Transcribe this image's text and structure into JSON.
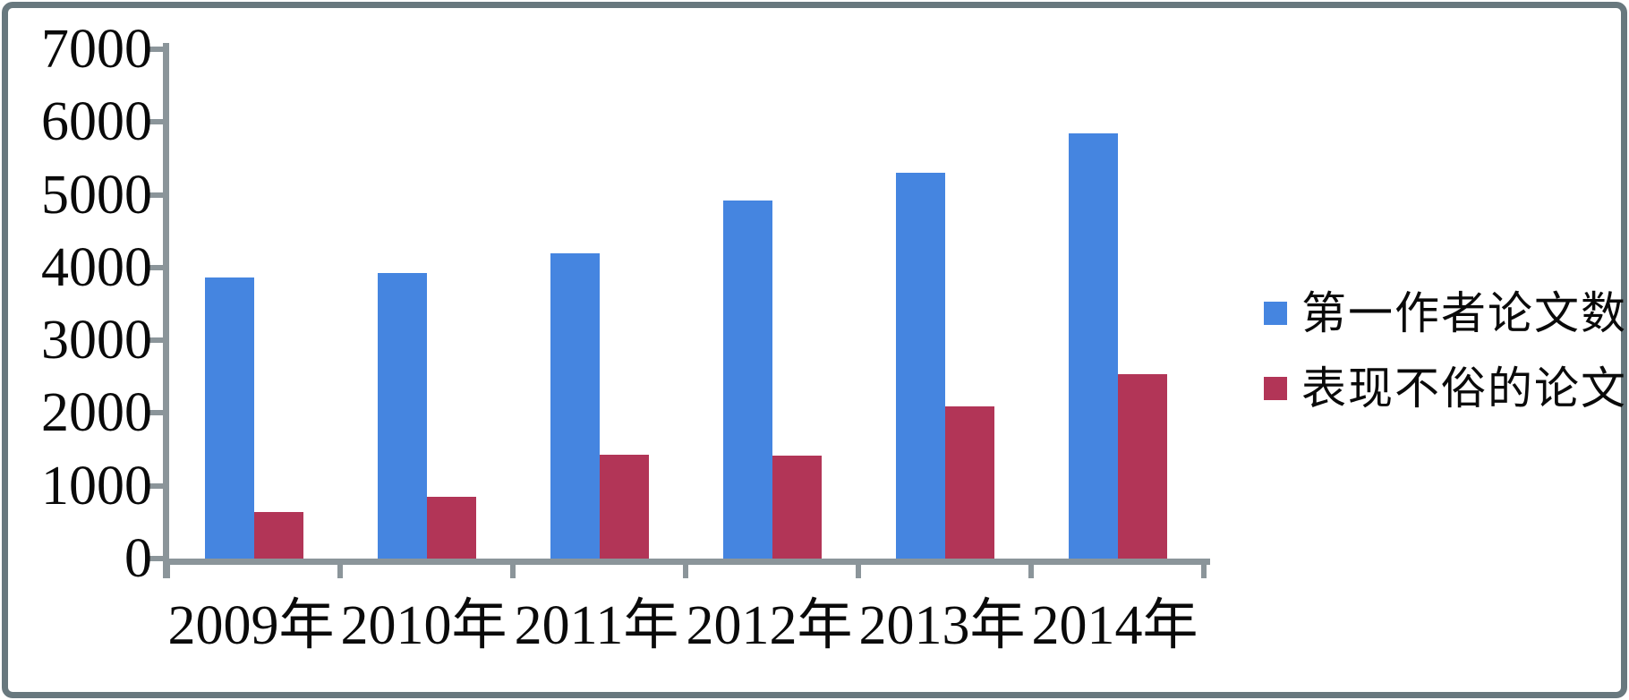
{
  "chart_data": {
    "type": "bar",
    "title": "",
    "xlabel": "",
    "ylabel": "",
    "categories": [
      "2009年",
      "2010年",
      "2011年",
      "2012年",
      "2013年",
      "2014年"
    ],
    "series": [
      {
        "name": "第一作者论文数",
        "color": "#4585e0",
        "values": [
          3860,
          3920,
          4200,
          4920,
          5300,
          5840
        ]
      },
      {
        "name": "表现不俗的论文",
        "color": "#b23557",
        "values": [
          640,
          850,
          1430,
          1410,
          2090,
          2530
        ]
      }
    ],
    "y_axis": {
      "min": 0,
      "max": 7000,
      "step": 1000,
      "tick_labels": [
        "0",
        "1000",
        "2000",
        "3000",
        "4000",
        "5000",
        "6000",
        "7000"
      ]
    },
    "grid": false,
    "legend_position": "right"
  },
  "colors": {
    "axis": "#8b959a",
    "frame_border": "#68787e",
    "background": "#ffffff",
    "text": "#0a0a0a"
  }
}
